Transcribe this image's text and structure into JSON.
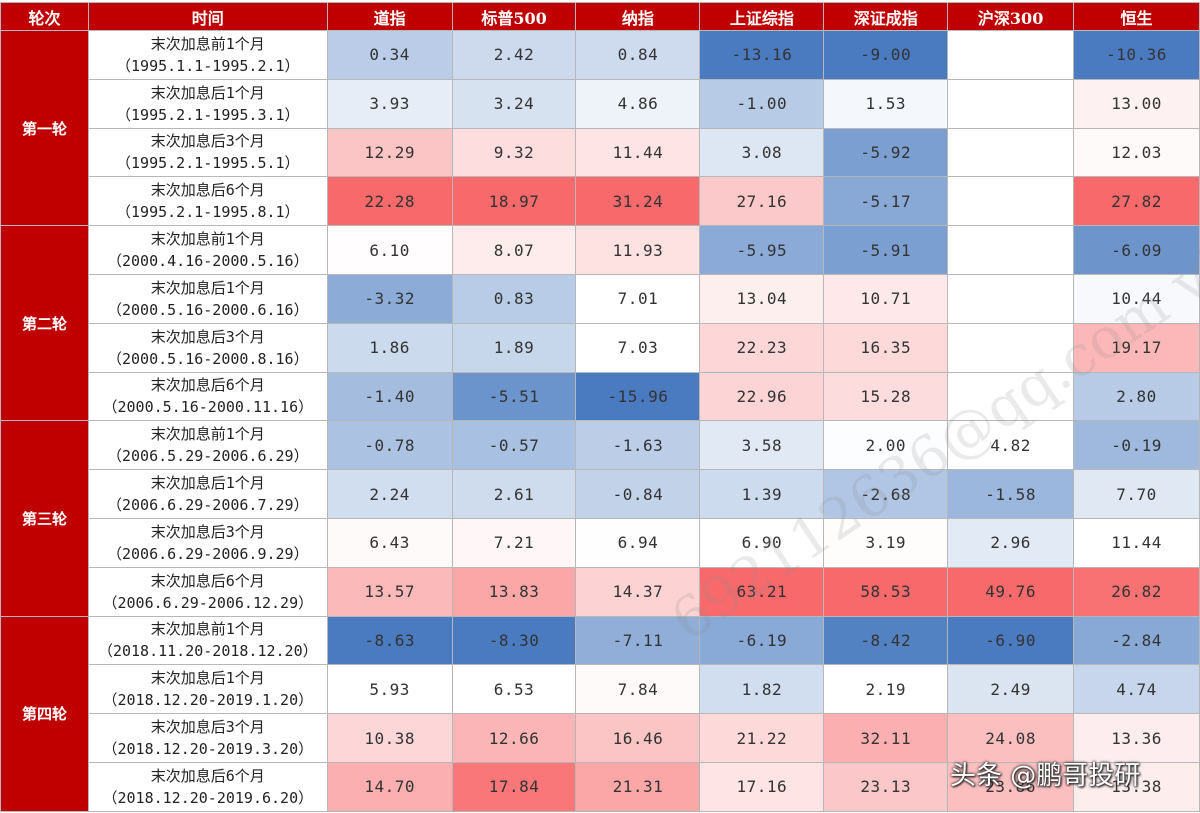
{
  "headers": [
    "轮次",
    "时间",
    "道指",
    "标普500",
    "纳指",
    "上证综指",
    "深证成指",
    "沪深300",
    "恒生"
  ],
  "rounds": [
    {
      "name": "第一轮",
      "rows": [
        {
          "label": "末次加息前1个月",
          "range": "（1995.1.1-1995.2.1）",
          "values": [
            "0.34",
            "2.42",
            "0.84",
            "-13.16",
            "-9.00",
            "",
            "-10.36"
          ]
        },
        {
          "label": "末次加息后1个月",
          "range": "（1995.2.1-1995.3.1）",
          "values": [
            "3.93",
            "3.24",
            "4.86",
            "-1.00",
            "1.53",
            "",
            "13.00"
          ]
        },
        {
          "label": "末次加息后3个月",
          "range": "（1995.2.1-1995.5.1）",
          "values": [
            "12.29",
            "9.32",
            "11.44",
            "3.08",
            "-5.92",
            "",
            "12.03"
          ]
        },
        {
          "label": "末次加息后6个月",
          "range": "（1995.2.1-1995.8.1）",
          "values": [
            "22.28",
            "18.97",
            "31.24",
            "27.16",
            "-5.17",
            "",
            "27.82"
          ]
        }
      ]
    },
    {
      "name": "第二轮",
      "rows": [
        {
          "label": "末次加息前1个月",
          "range": "（2000.4.16-2000.5.16）",
          "values": [
            "6.10",
            "8.07",
            "11.93",
            "-5.95",
            "-5.91",
            "",
            "-6.09"
          ]
        },
        {
          "label": "末次加息后1个月",
          "range": "（2000.5.16-2000.6.16）",
          "values": [
            "-3.32",
            "0.83",
            "7.01",
            "13.04",
            "10.71",
            "",
            "10.44"
          ]
        },
        {
          "label": "末次加息后3个月",
          "range": "（2000.5.16-2000.8.16）",
          "values": [
            "1.86",
            "1.89",
            "7.03",
            "22.23",
            "16.35",
            "",
            "19.17"
          ]
        },
        {
          "label": "末次加息后6个月",
          "range": "（2000.5.16-2000.11.16）",
          "values": [
            "-1.40",
            "-5.51",
            "-15.96",
            "22.96",
            "15.28",
            "",
            "2.80"
          ]
        }
      ]
    },
    {
      "name": "第三轮",
      "rows": [
        {
          "label": "末次加息前1个月",
          "range": "（2006.5.29-2006.6.29）",
          "values": [
            "-0.78",
            "-0.57",
            "-1.63",
            "3.58",
            "2.00",
            "4.82",
            "-0.19"
          ]
        },
        {
          "label": "末次加息后1个月",
          "range": "（2006.6.29-2006.7.29）",
          "values": [
            "2.24",
            "2.61",
            "-0.84",
            "1.39",
            "-2.68",
            "-1.58",
            "7.70"
          ]
        },
        {
          "label": "末次加息后3个月",
          "range": "（2006.6.29-2006.9.29）",
          "values": [
            "6.43",
            "7.21",
            "6.94",
            "6.90",
            "3.19",
            "2.96",
            "11.44"
          ]
        },
        {
          "label": "末次加息后6个月",
          "range": "（2006.6.29-2006.12.29）",
          "values": [
            "13.57",
            "13.83",
            "14.37",
            "63.21",
            "58.53",
            "49.76",
            "26.82"
          ]
        }
      ]
    },
    {
      "name": "第四轮",
      "rows": [
        {
          "label": "末次加息前1个月",
          "range": "（2018.11.20-2018.12.20）",
          "values": [
            "-8.63",
            "-8.30",
            "-7.11",
            "-6.19",
            "-8.42",
            "-6.90",
            "-2.84"
          ]
        },
        {
          "label": "末次加息后1个月",
          "range": "（2018.12.20-2019.1.20）",
          "values": [
            "5.93",
            "6.53",
            "7.84",
            "1.82",
            "2.19",
            "2.49",
            "4.74"
          ]
        },
        {
          "label": "末次加息后3个月",
          "range": "（2018.12.20-2019.3.20）",
          "values": [
            "10.38",
            "12.66",
            "16.46",
            "21.22",
            "32.11",
            "24.08",
            "13.36"
          ]
        },
        {
          "label": "末次加息后6个月",
          "range": "（2018.12.20-2019.6.20）",
          "values": [
            "14.70",
            "17.84",
            "21.31",
            "17.16",
            "23.13",
            "23.86",
            "13.38"
          ]
        }
      ]
    }
  ],
  "colors": {
    "header_bg": "#c00000",
    "negative_strong": "#4a7bc0",
    "positive_strong": "#f8696b",
    "neutral": "#ffffff"
  },
  "watermark": "692112636@qq.com vi",
  "credit": "头条 @鹏哥投研"
}
